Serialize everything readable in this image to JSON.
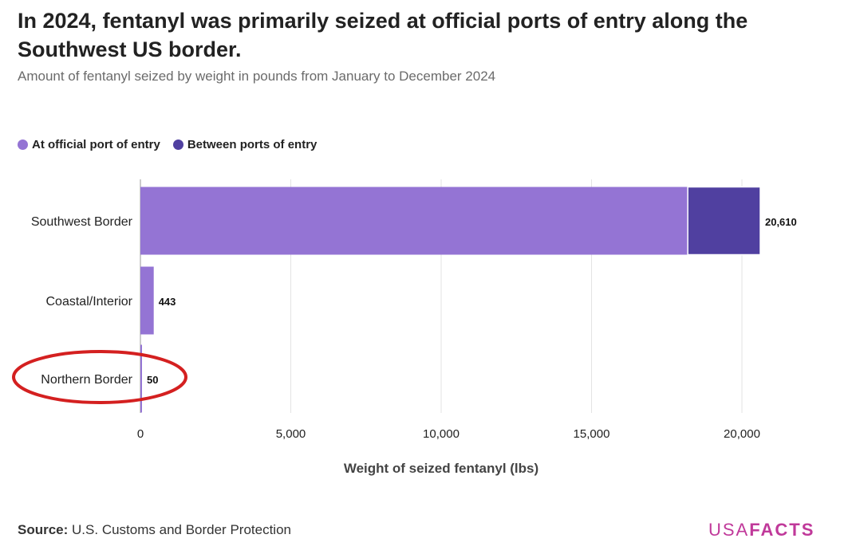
{
  "header": {
    "title": "In 2024, fentanyl was primarily seized at official ports of entry along the Southwest US border.",
    "subtitle": "Amount of fentanyl seized by weight in pounds from January to December 2024"
  },
  "legend": {
    "items": [
      {
        "label": "At official port of entry",
        "color": "#9474d4"
      },
      {
        "label": "Between ports of entry",
        "color": "#5040a0"
      }
    ]
  },
  "chart_data": {
    "type": "bar",
    "orientation": "horizontal",
    "stacked": true,
    "categories": [
      "Southwest Border",
      "Coastal/Interior",
      "Northern Border"
    ],
    "series": [
      {
        "name": "At official port of entry",
        "color": "#9474d4",
        "values": [
          18200,
          443,
          50
        ]
      },
      {
        "name": "Between ports of entry",
        "color": "#5040a0",
        "values": [
          2410,
          0,
          0
        ]
      }
    ],
    "totals": [
      20610,
      443,
      50
    ],
    "total_labels": [
      "20,610",
      "443",
      "50"
    ],
    "xlabel": "Weight of seized fentanyl (lbs)",
    "xlim": [
      0,
      20000
    ],
    "xticks": [
      0,
      5000,
      10000,
      15000,
      20000
    ],
    "xtick_labels": [
      "0",
      "5,000",
      "10,000",
      "15,000",
      "20,000"
    ],
    "grid": true,
    "legend_position": "top-left"
  },
  "annotation": {
    "highlight": "Northern Border",
    "color": "#d42020"
  },
  "footer": {
    "source_prefix": "Source:",
    "source_text": "U.S. Customs and Border Protection",
    "logo_usa": "USA",
    "logo_facts": "FACTS"
  }
}
